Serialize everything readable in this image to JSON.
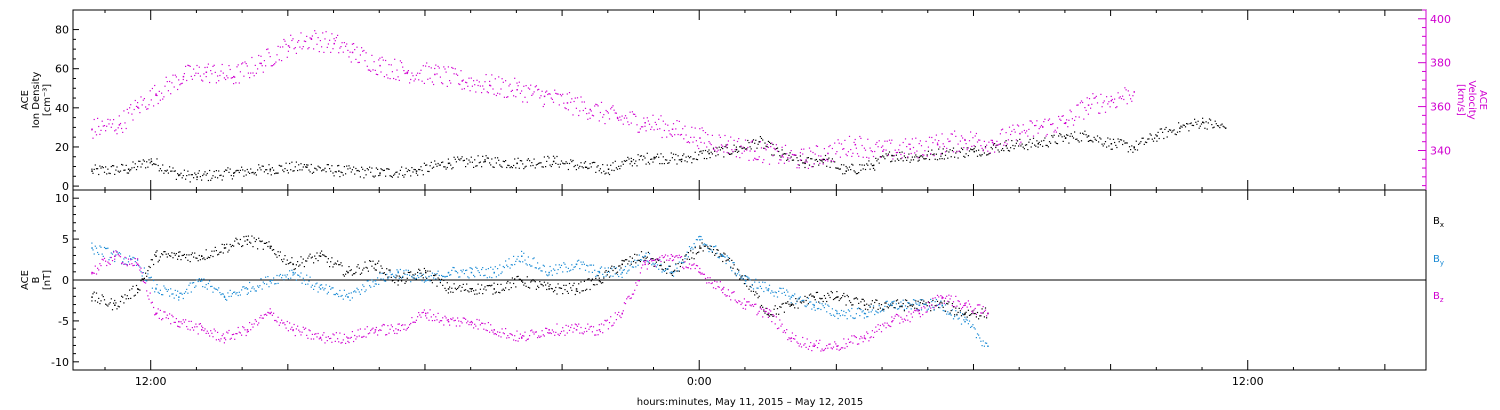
{
  "chart_data": [
    {
      "type": "scatter",
      "panel": "top",
      "ylabel_lines": [
        "ACE",
        "Ion Density"
      ],
      "yunit": "[cm⁻³]",
      "y_ticks": [
        "0",
        "20",
        "40",
        "60",
        "80"
      ],
      "ylim": [
        -2,
        90
      ],
      "y2label_lines": [
        "ACE",
        "Velocity"
      ],
      "y2unit": "[km/s]",
      "y2_ticks": [
        "340",
        "360",
        "380",
        "400"
      ],
      "y2lim": [
        322,
        404
      ],
      "grid": false,
      "series": [
        {
          "color": "#000000",
          "x": [
            -13.3,
            -12.5,
            -12.0,
            -11.4,
            -11.0,
            -10.2,
            -9.4,
            -8.6,
            -7.9,
            -7.0,
            -6.2,
            -5.5,
            -4.7,
            -4.0,
            -3.2,
            -2.5,
            -2.0,
            -1.5,
            -1.0,
            -0.4,
            0.2,
            0.8,
            1.3,
            1.8,
            2.3,
            2.7,
            3.2,
            3.8,
            4.2,
            4.8,
            5.3,
            6.0,
            6.7,
            7.4,
            8.0,
            8.5,
            9.0,
            9.5,
            10.0,
            10.5,
            11.0,
            11.5,
            12.0,
            12.5,
            13.0
          ],
          "y": [
            8,
            9,
            13,
            6,
            5,
            7,
            9,
            10,
            8,
            7,
            8,
            12,
            13,
            12,
            13,
            10,
            9,
            13,
            15,
            14,
            17,
            19,
            23,
            16,
            12,
            14,
            8,
            11,
            16,
            15,
            17,
            18,
            21,
            22,
            25,
            26,
            22,
            20,
            26,
            30,
            33,
            30,
            null,
            null,
            null
          ]
        },
        {
          "color": "#d000d0",
          "x": [
            -13.3,
            -12.7,
            -12.3,
            -11.9,
            -11.3,
            -10.8,
            -10.2,
            -9.6,
            -9.0,
            -8.5,
            -8.0,
            -7.6,
            -7.0,
            -6.4,
            -5.8,
            -5.2,
            -4.6,
            -4.0,
            -3.4,
            -2.9,
            -2.4,
            -1.8,
            -1.2,
            -0.6,
            0.0,
            0.6,
            1.2,
            1.8,
            2.2,
            2.8,
            3.4,
            4.0,
            4.6,
            5.2,
            5.8,
            6.4,
            7.0,
            7.5,
            8.0,
            8.5,
            9.0,
            9.5,
            10.0,
            10.5,
            11.0,
            11.5,
            12.0,
            12.5,
            13.0
          ],
          "y": [
            350,
            352,
            360,
            366,
            374,
            376,
            374,
            380,
            388,
            391,
            389,
            385,
            379,
            376,
            375,
            372,
            370,
            368,
            365,
            362,
            359,
            355,
            353,
            350,
            346,
            343,
            340,
            338,
            336,
            339,
            343,
            340,
            341,
            343,
            345,
            344,
            348,
            351,
            353,
            361,
            363,
            367,
            null,
            null,
            null,
            null,
            null,
            null,
            null
          ]
        }
      ]
    },
    {
      "type": "scatter",
      "panel": "bottom",
      "ylabel_lines": [
        "ACE",
        "B"
      ],
      "yunit": "[nT]",
      "y_ticks": [
        "-10",
        "-5",
        "0",
        "5",
        "10"
      ],
      "ylim": [
        -11,
        11
      ],
      "zero_line": true,
      "xlim": [
        -13.7,
        15.9
      ],
      "x_ticks": [
        "12:00",
        "0:00",
        "12:00"
      ],
      "x_tick_values": [
        -12,
        0,
        12
      ],
      "xlabel": "hours:minutes, May 11, 2015 – May 12, 2015",
      "grid": false,
      "series": [
        {
          "name": "Bx",
          "color": "#000000",
          "x": [
            -13.3,
            -12.8,
            -12.3,
            -11.9,
            -11.4,
            -10.9,
            -10.4,
            -9.9,
            -9.4,
            -8.9,
            -8.3,
            -7.7,
            -7.1,
            -6.6,
            -6.0,
            -5.5,
            -5.0,
            -4.5,
            -3.9,
            -3.3,
            -2.7,
            -2.2,
            -1.7,
            -1.2,
            -0.6,
            0.0,
            0.5,
            1.0,
            1.5,
            2.0,
            2.5,
            3.0,
            3.6,
            4.2,
            4.8,
            5.3,
            5.8,
            6.3
          ],
          "y": [
            -2,
            -3,
            -1,
            3,
            3,
            3,
            4,
            5,
            4,
            2,
            3,
            1,
            2,
            0,
            1,
            -1,
            -1,
            -1,
            0,
            -1,
            -1,
            0,
            2,
            3,
            1,
            4,
            3,
            0,
            -4,
            -3,
            -2,
            -2,
            -3,
            -3,
            -3,
            -3,
            -4,
            -4
          ]
        },
        {
          "name": "By",
          "color": "#1a8ad4",
          "x": [
            -13.3,
            -12.8,
            -12.3,
            -11.9,
            -11.4,
            -10.9,
            -10.4,
            -9.9,
            -9.4,
            -8.9,
            -8.3,
            -7.7,
            -7.1,
            -6.6,
            -6.0,
            -5.5,
            -5.0,
            -4.5,
            -3.9,
            -3.3,
            -2.7,
            -2.2,
            -1.7,
            -1.2,
            -0.6,
            0.0,
            0.5,
            1.0,
            1.5,
            2.0,
            2.5,
            3.0,
            3.6,
            4.2,
            4.8,
            5.3,
            5.8,
            6.3
          ],
          "y": [
            4,
            3,
            2,
            -1,
            -2,
            0,
            -2,
            -1,
            0,
            1,
            -1,
            -2,
            0,
            1,
            0,
            1,
            1,
            1,
            3,
            1,
            2,
            1,
            1,
            3,
            1,
            5,
            3,
            0,
            -1,
            -2,
            -3,
            -4,
            -4,
            -3,
            -3,
            -3,
            -5,
            -8
          ]
        },
        {
          "name": "Bz",
          "color": "#d000d0",
          "x": [
            -13.3,
            -12.8,
            -12.3,
            -11.9,
            -11.4,
            -10.9,
            -10.4,
            -9.9,
            -9.4,
            -8.9,
            -8.3,
            -7.7,
            -7.1,
            -6.6,
            -6.0,
            -5.5,
            -5.0,
            -4.5,
            -3.9,
            -3.3,
            -2.7,
            -2.2,
            -1.7,
            -1.2,
            -0.6,
            0.0,
            0.5,
            1.0,
            1.5,
            2.0,
            2.5,
            3.0,
            3.6,
            4.2,
            4.8,
            5.3,
            5.8,
            6.3
          ],
          "y": [
            1,
            3,
            2,
            -4,
            -5,
            -6,
            -7,
            -6,
            -4,
            -6,
            -7,
            -7,
            -6,
            -6,
            -4,
            -5,
            -5,
            -6,
            -7,
            -6,
            -6,
            -6,
            -4,
            2,
            3,
            1,
            -1,
            -3,
            -4,
            -7,
            -8,
            -8,
            -7,
            -5,
            -4,
            -2,
            -3,
            -4
          ]
        }
      ],
      "legend_position": "right",
      "legend": [
        {
          "label": "B",
          "sub": "x",
          "color": "#000000"
        },
        {
          "label": "B",
          "sub": "y",
          "color": "#1a8ad4"
        },
        {
          "label": "B",
          "sub": "z",
          "color": "#d000d0"
        }
      ]
    }
  ]
}
